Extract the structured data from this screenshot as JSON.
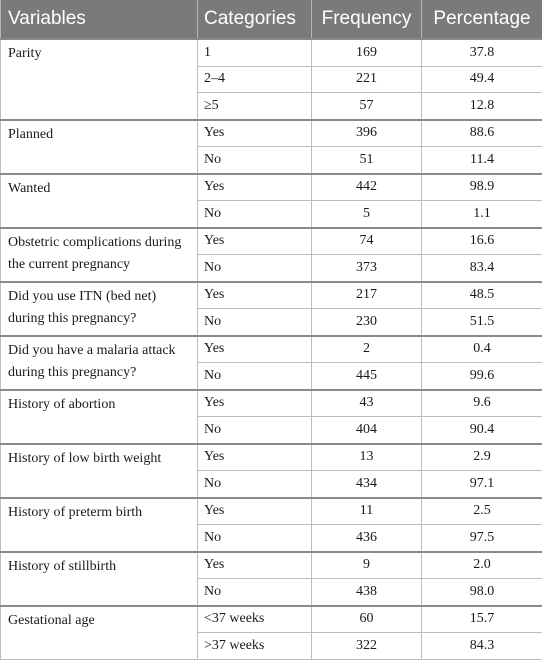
{
  "table": {
    "headers": [
      "Variables",
      "Categories",
      "Frequency",
      "Percentage"
    ],
    "groups": [
      {
        "variable": "Parity",
        "rows": [
          {
            "category": "1",
            "frequency": "169",
            "percentage": "37.8"
          },
          {
            "category": "2–4",
            "frequency": "221",
            "percentage": "49.4"
          },
          {
            "category": "≥5",
            "frequency": "57",
            "percentage": "12.8"
          }
        ]
      },
      {
        "variable": "Planned",
        "rows": [
          {
            "category": "Yes",
            "frequency": "396",
            "percentage": "88.6"
          },
          {
            "category": "No",
            "frequency": "51",
            "percentage": "11.4"
          }
        ]
      },
      {
        "variable": "Wanted",
        "rows": [
          {
            "category": "Yes",
            "frequency": "442",
            "percentage": "98.9"
          },
          {
            "category": "No",
            "frequency": "5",
            "percentage": "1.1"
          }
        ]
      },
      {
        "variable": "Obstetric complications during the current pregnancy",
        "rows": [
          {
            "category": "Yes",
            "frequency": "74",
            "percentage": "16.6"
          },
          {
            "category": "No",
            "frequency": "373",
            "percentage": "83.4"
          }
        ]
      },
      {
        "variable": "Did you use ITN (bed net) during this pregnancy?",
        "rows": [
          {
            "category": "Yes",
            "frequency": "217",
            "percentage": "48.5"
          },
          {
            "category": "No",
            "frequency": "230",
            "percentage": "51.5"
          }
        ]
      },
      {
        "variable": "Did you have a malaria attack during this pregnancy?",
        "rows": [
          {
            "category": "Yes",
            "frequency": "2",
            "percentage": "0.4"
          },
          {
            "category": "No",
            "frequency": "445",
            "percentage": "99.6"
          }
        ]
      },
      {
        "variable": "History of abortion",
        "rows": [
          {
            "category": "Yes",
            "frequency": "43",
            "percentage": "9.6"
          },
          {
            "category": "No",
            "frequency": "404",
            "percentage": "90.4"
          }
        ]
      },
      {
        "variable": "History of low birth weight",
        "rows": [
          {
            "category": "Yes",
            "frequency": "13",
            "percentage": "2.9"
          },
          {
            "category": "No",
            "frequency": "434",
            "percentage": "97.1"
          }
        ]
      },
      {
        "variable": "History of preterm birth",
        "rows": [
          {
            "category": "Yes",
            "frequency": "11",
            "percentage": "2.5"
          },
          {
            "category": "No",
            "frequency": "436",
            "percentage": "97.5"
          }
        ]
      },
      {
        "variable": "History of stillbirth",
        "rows": [
          {
            "category": "Yes",
            "frequency": "9",
            "percentage": "2.0"
          },
          {
            "category": "No",
            "frequency": "438",
            "percentage": "98.0"
          }
        ]
      },
      {
        "variable": "Gestational age",
        "rows": [
          {
            "category": "<37 weeks",
            "frequency": "60",
            "percentage": "15.7"
          },
          {
            "category": ">37 weeks",
            "frequency": "322",
            "percentage": "84.3"
          }
        ]
      }
    ]
  }
}
